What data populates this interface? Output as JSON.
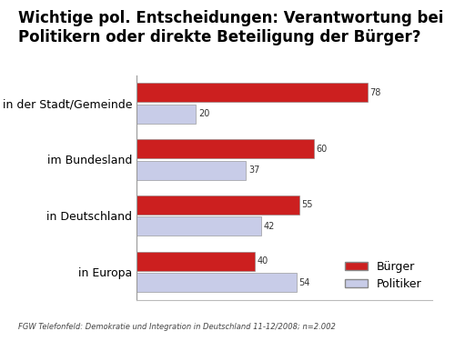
{
  "chart_data": {
    "type": "bar",
    "title": "Wichtige pol. Entscheidungen: Verantwortung bei Politikern oder direkte Beteiligung der Bürger?",
    "source": "FGW Telefonfeld: Demokratie und Integration in Deutschland 11-12/2008; n=2.002",
    "orientation": "horizontal",
    "categories": [
      "in der Stadt/Gemeinde",
      "im Bundesland",
      "in Deutschland",
      "in Europa"
    ],
    "series": [
      {
        "name": "Bürger",
        "color": "#cc1f1f",
        "values": [
          78,
          60,
          55,
          40
        ]
      },
      {
        "name": "Politiker",
        "color": "#c8cce8",
        "values": [
          20,
          37,
          42,
          54
        ]
      }
    ],
    "xlim": [
      0,
      100
    ],
    "tick_labels": "y",
    "data_labels": true,
    "legend": "lower right",
    "grid": false
  }
}
